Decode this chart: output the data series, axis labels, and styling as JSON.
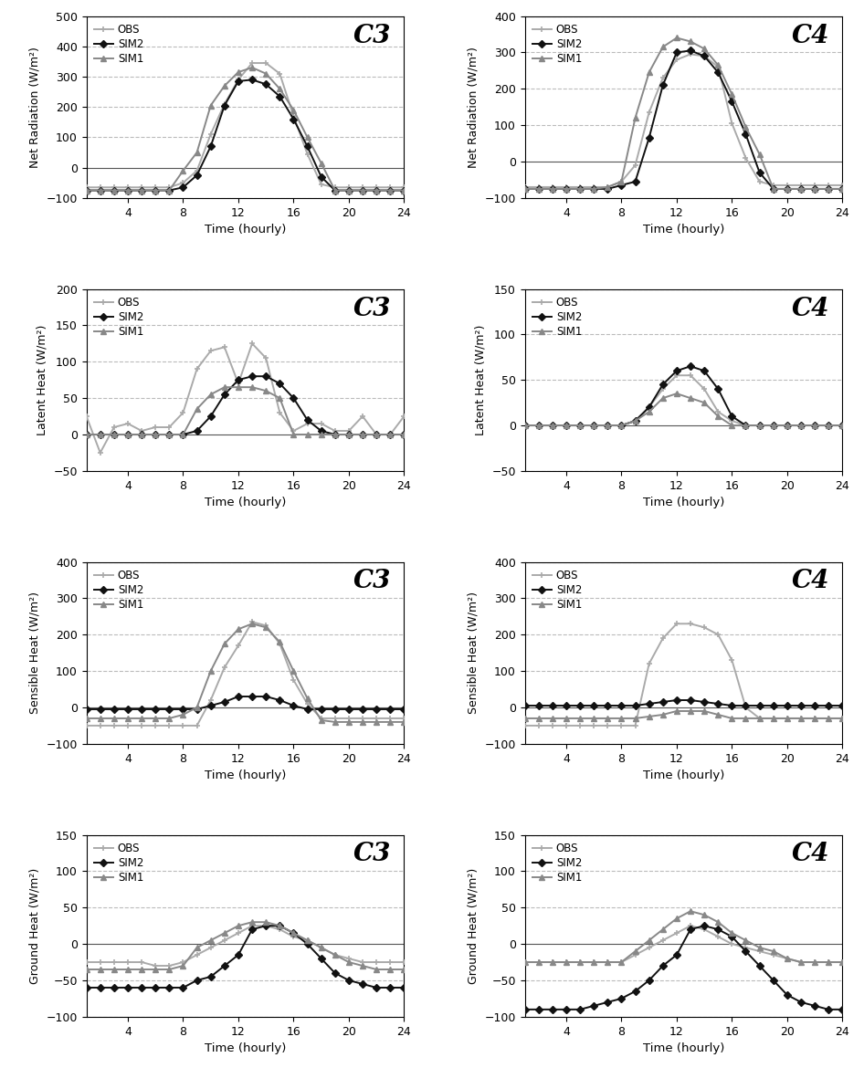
{
  "time": [
    1,
    2,
    3,
    4,
    5,
    6,
    7,
    8,
    9,
    10,
    11,
    12,
    13,
    14,
    15,
    16,
    17,
    18,
    19,
    20,
    21,
    22,
    23,
    24
  ],
  "C3_Rn_OBS": [
    -65,
    -65,
    -65,
    -65,
    -65,
    -65,
    -65,
    -50,
    -10,
    110,
    210,
    290,
    345,
    345,
    310,
    170,
    45,
    -55,
    -65,
    -65,
    -65,
    -65,
    -65,
    -65
  ],
  "C3_Rn_SIM2": [
    -75,
    -75,
    -75,
    -75,
    -75,
    -75,
    -75,
    -65,
    -25,
    70,
    205,
    285,
    290,
    275,
    235,
    160,
    70,
    -30,
    -75,
    -75,
    -75,
    -75,
    -75,
    -75
  ],
  "C3_Rn_SIM1": [
    -75,
    -75,
    -75,
    -75,
    -75,
    -75,
    -75,
    -10,
    50,
    205,
    270,
    315,
    330,
    310,
    260,
    190,
    100,
    15,
    -75,
    -75,
    -75,
    -75,
    -75,
    -75
  ],
  "C4_Rn_OBS": [
    -70,
    -70,
    -70,
    -70,
    -70,
    -70,
    -70,
    -55,
    -10,
    135,
    230,
    280,
    295,
    290,
    260,
    105,
    10,
    -55,
    -65,
    -65,
    -65,
    -65,
    -65,
    -65
  ],
  "C4_Rn_SIM2": [
    -75,
    -75,
    -75,
    -75,
    -75,
    -75,
    -75,
    -65,
    -55,
    65,
    210,
    300,
    305,
    290,
    245,
    165,
    75,
    -30,
    -75,
    -75,
    -75,
    -75,
    -75,
    -75
  ],
  "C4_Rn_SIM1": [
    -75,
    -75,
    -75,
    -75,
    -75,
    -75,
    -70,
    -55,
    120,
    245,
    315,
    340,
    330,
    310,
    265,
    185,
    95,
    20,
    -75,
    -75,
    -75,
    -75,
    -75,
    -75
  ],
  "C3_LE_OBS": [
    25,
    -25,
    10,
    15,
    5,
    10,
    10,
    30,
    90,
    115,
    120,
    70,
    125,
    105,
    30,
    5,
    15,
    15,
    5,
    5,
    25,
    0,
    0,
    25
  ],
  "C3_LE_SIM2": [
    0,
    0,
    0,
    0,
    0,
    0,
    0,
    0,
    5,
    25,
    55,
    75,
    80,
    80,
    70,
    50,
    20,
    5,
    0,
    0,
    0,
    0,
    0,
    0
  ],
  "C3_LE_SIM1": [
    0,
    0,
    0,
    0,
    0,
    0,
    0,
    0,
    35,
    55,
    65,
    65,
    65,
    60,
    50,
    0,
    0,
    0,
    0,
    0,
    0,
    0,
    0,
    0
  ],
  "C4_LE_OBS": [
    0,
    0,
    0,
    0,
    0,
    0,
    0,
    0,
    5,
    20,
    40,
    55,
    55,
    40,
    15,
    5,
    0,
    0,
    0,
    0,
    0,
    0,
    0,
    0
  ],
  "C4_LE_SIM2": [
    0,
    0,
    0,
    0,
    0,
    0,
    0,
    0,
    5,
    20,
    45,
    60,
    65,
    60,
    40,
    10,
    0,
    0,
    0,
    0,
    0,
    0,
    0,
    0
  ],
  "C4_LE_SIM1": [
    0,
    0,
    0,
    0,
    0,
    0,
    0,
    0,
    5,
    15,
    30,
    35,
    30,
    25,
    10,
    0,
    0,
    0,
    0,
    0,
    0,
    0,
    0,
    0
  ],
  "C3_H_OBS": [
    -50,
    -50,
    -50,
    -50,
    -50,
    -50,
    -50,
    -50,
    -50,
    20,
    110,
    170,
    235,
    225,
    175,
    75,
    10,
    -30,
    -30,
    -30,
    -30,
    -30,
    -30,
    -30
  ],
  "C3_H_SIM2": [
    -5,
    -5,
    -5,
    -5,
    -5,
    -5,
    -5,
    -5,
    -5,
    5,
    15,
    30,
    30,
    30,
    20,
    5,
    -5,
    -5,
    -5,
    -5,
    -5,
    -5,
    -5,
    -5
  ],
  "C3_H_SIM1": [
    -30,
    -30,
    -30,
    -30,
    -30,
    -30,
    -30,
    -20,
    0,
    100,
    175,
    215,
    230,
    220,
    180,
    100,
    25,
    -35,
    -40,
    -40,
    -40,
    -40,
    -40,
    -40
  ],
  "C4_H_OBS": [
    -50,
    -50,
    -50,
    -50,
    -50,
    -50,
    -50,
    -50,
    -50,
    120,
    190,
    230,
    230,
    220,
    200,
    130,
    0,
    -30,
    -30,
    -30,
    -30,
    -30,
    -30,
    -30
  ],
  "C4_H_SIM2": [
    5,
    5,
    5,
    5,
    5,
    5,
    5,
    5,
    5,
    10,
    15,
    20,
    20,
    15,
    10,
    5,
    5,
    5,
    5,
    5,
    5,
    5,
    5,
    5
  ],
  "C4_H_SIM1": [
    -30,
    -30,
    -30,
    -30,
    -30,
    -30,
    -30,
    -30,
    -30,
    -25,
    -20,
    -10,
    -10,
    -10,
    -20,
    -30,
    -30,
    -30,
    -30,
    -30,
    -30,
    -30,
    -30,
    -30
  ],
  "C3_G_OBS": [
    -25,
    -25,
    -25,
    -25,
    -25,
    -30,
    -30,
    -25,
    -15,
    -5,
    5,
    15,
    25,
    25,
    20,
    10,
    5,
    -5,
    -15,
    -20,
    -25,
    -25,
    -25,
    -25
  ],
  "C3_G_SIM2": [
    -60,
    -60,
    -60,
    -60,
    -60,
    -60,
    -60,
    -60,
    -50,
    -45,
    -30,
    -15,
    20,
    25,
    25,
    15,
    0,
    -20,
    -40,
    -50,
    -55,
    -60,
    -60,
    -60
  ],
  "C3_G_SIM1": [
    -35,
    -35,
    -35,
    -35,
    -35,
    -35,
    -35,
    -30,
    -5,
    5,
    15,
    25,
    30,
    30,
    25,
    15,
    5,
    -5,
    -15,
    -25,
    -30,
    -35,
    -35,
    -35
  ],
  "C4_G_OBS": [
    -25,
    -25,
    -25,
    -25,
    -25,
    -25,
    -25,
    -25,
    -15,
    -5,
    5,
    15,
    25,
    20,
    10,
    0,
    -5,
    -10,
    -15,
    -20,
    -25,
    -25,
    -25,
    -25
  ],
  "C4_G_SIM2": [
    -90,
    -90,
    -90,
    -90,
    -90,
    -85,
    -80,
    -75,
    -65,
    -50,
    -30,
    -15,
    20,
    25,
    20,
    10,
    -10,
    -30,
    -50,
    -70,
    -80,
    -85,
    -90,
    -90
  ],
  "C4_G_SIM1": [
    -25,
    -25,
    -25,
    -25,
    -25,
    -25,
    -25,
    -25,
    -10,
    5,
    20,
    35,
    45,
    40,
    30,
    15,
    5,
    -5,
    -10,
    -20,
    -25,
    -25,
    -25,
    -25
  ],
  "col_obs": "#aaaaaa",
  "col_sim2": "#111111",
  "col_sim1": "#888888"
}
